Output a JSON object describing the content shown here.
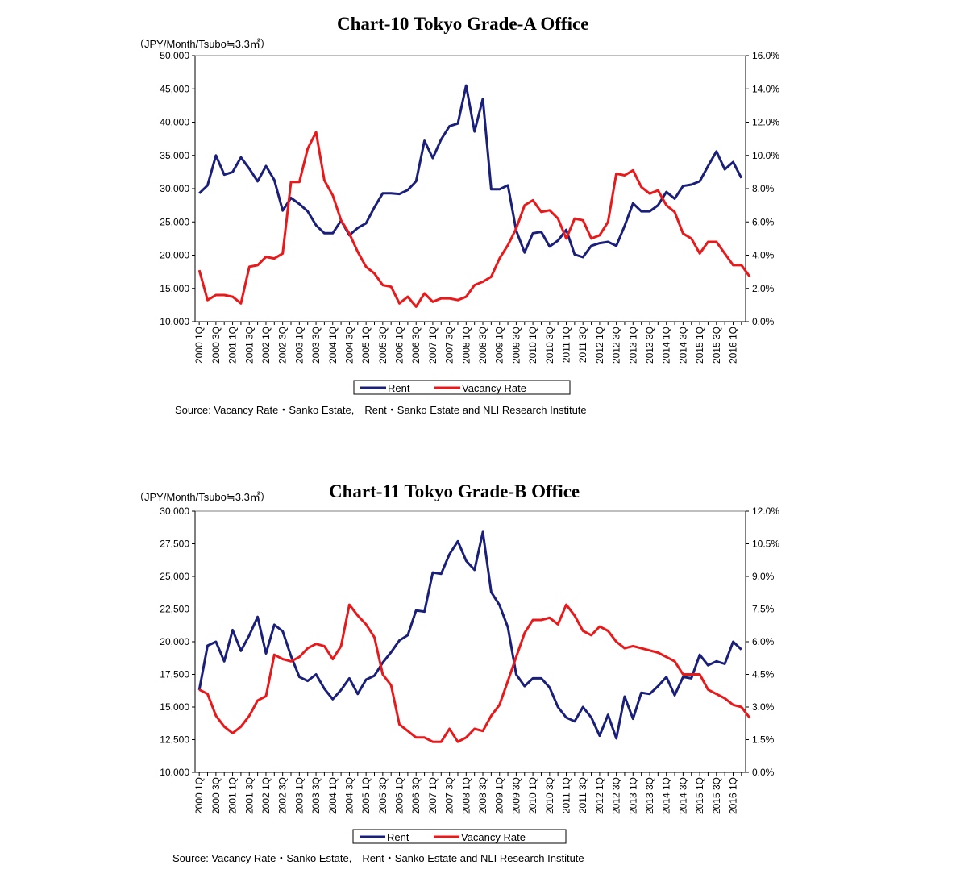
{
  "charts": [
    {
      "id": "a",
      "title": "Chart-10 Tokyo Grade-A Office",
      "unit": "（JPY/Month/Tsubo≒3.3㎡）",
      "source": "Source: Vacancy Rate・Sanko Estate,　Rent・Sanko Estate and NLI Research Institute",
      "legend": [
        "Rent",
        "Vacancy Rate"
      ]
    },
    {
      "id": "b",
      "title": "Chart-11 Tokyo Grade-B Office",
      "unit": "（JPY/Month/Tsubo≒3.3㎡）",
      "source": "Source: Vacancy Rate・Sanko Estate,　Rent・Sanko Estate and NLI Research Institute",
      "legend": [
        "Rent",
        "Vacancy Rate"
      ]
    }
  ],
  "colors": {
    "rent": "#1a1f7a",
    "vacancy": "#e8191b",
    "axis": "#000000",
    "frame": "#7f7f7f"
  },
  "chart_data": [
    {
      "type": "line",
      "title": "Chart-10 Tokyo Grade-A Office",
      "ylabel": "（JPY/Month/Tsubo≒3.3㎡）",
      "x_tick_labels": [
        "2000 1Q",
        "2000 3Q",
        "2001 1Q",
        "2001 3Q",
        "2002 1Q",
        "2002 3Q",
        "2003 1Q",
        "2003 3Q",
        "2004 1Q",
        "2004 3Q",
        "2005 1Q",
        "2005 3Q",
        "2006 1Q",
        "2006 3Q",
        "2007 1Q",
        "2007 3Q",
        "2008 1Q",
        "2008 3Q",
        "2009 1Q",
        "2009 3Q",
        "2010 1Q",
        "2010 3Q",
        "2011 1Q",
        "2011 3Q",
        "2012 1Q",
        "2012 3Q",
        "2013 1Q",
        "2013 3Q",
        "2014 1Q",
        "2014 3Q",
        "2015 1Q",
        "2015 3Q",
        "2016 1Q"
      ],
      "y_left": {
        "range": [
          10000,
          50000
        ],
        "ticks": [
          "10,000",
          "15,000",
          "20,000",
          "25,000",
          "30,000",
          "35,000",
          "40,000",
          "45,000",
          "50,000"
        ]
      },
      "y_right": {
        "range": [
          0,
          16
        ],
        "ticks": [
          "0.0%",
          "2.0%",
          "4.0%",
          "6.0%",
          "8.0%",
          "10.0%",
          "12.0%",
          "14.0%",
          "16.0%"
        ]
      },
      "legend_position": "bottom",
      "grid": false,
      "series": [
        {
          "name": "Rent",
          "axis": "left",
          "values": [
            29300,
            30500,
            35000,
            32100,
            32500,
            34700,
            33000,
            31100,
            33400,
            31300,
            26700,
            28600,
            27700,
            26600,
            24500,
            23300,
            23300,
            25200,
            23000,
            24100,
            24800,
            27200,
            29300,
            29300,
            29200,
            29800,
            31100,
            37200,
            34600,
            37400,
            39400,
            39800,
            45500,
            38600,
            43500,
            29900,
            29900,
            30500,
            23700,
            20400,
            23300,
            23500,
            21300,
            22200,
            23800,
            20100,
            19700,
            21400,
            21800,
            22000,
            21400,
            24400,
            27800,
            26600,
            26600,
            27500,
            29500,
            28500,
            30400,
            30600,
            31100,
            33400,
            35600,
            32900,
            34000,
            31600
          ]
        },
        {
          "name": "Vacancy Rate",
          "axis": "right",
          "values": [
            3.1,
            1.3,
            1.6,
            1.6,
            1.5,
            1.1,
            3.3,
            3.4,
            3.9,
            3.8,
            4.1,
            8.4,
            8.4,
            10.4,
            11.4,
            8.5,
            7.6,
            6.1,
            5.3,
            4.2,
            3.3,
            2.9,
            2.2,
            2.1,
            1.1,
            1.5,
            0.9,
            1.7,
            1.2,
            1.4,
            1.4,
            1.3,
            1.5,
            2.2,
            2.4,
            2.7,
            3.8,
            4.6,
            5.6,
            7.0,
            7.3,
            6.6,
            6.7,
            6.2,
            5.0,
            6.2,
            6.1,
            5.0,
            5.2,
            6.0,
            8.9,
            8.8,
            9.1,
            8.1,
            7.7,
            7.9,
            7.0,
            6.6,
            5.3,
            5.0,
            4.1,
            4.8,
            4.8,
            4.1,
            3.4,
            3.4,
            2.7
          ]
        }
      ]
    },
    {
      "type": "line",
      "title": "Chart-11 Tokyo Grade-B Office",
      "ylabel": "（JPY/Month/Tsubo≒3.3㎡）",
      "x_tick_labels": [
        "2000 1Q",
        "2000 3Q",
        "2001 1Q",
        "2001 3Q",
        "2002 1Q",
        "2002 3Q",
        "2003 1Q",
        "2003 3Q",
        "2004 1Q",
        "2004 3Q",
        "2005 1Q",
        "2005 3Q",
        "2006 1Q",
        "2006 3Q",
        "2007 1Q",
        "2007 3Q",
        "2008 1Q",
        "2008 3Q",
        "2009 1Q",
        "2009 3Q",
        "2010 1Q",
        "2010 3Q",
        "2011 1Q",
        "2011 3Q",
        "2012 1Q",
        "2012 3Q",
        "2013 1Q",
        "2013 3Q",
        "2014 1Q",
        "2014 3Q",
        "2015 1Q",
        "2015 3Q",
        "2016 1Q"
      ],
      "y_left": {
        "range": [
          10000,
          30000
        ],
        "ticks": [
          "10,000",
          "12,500",
          "15,000",
          "17,500",
          "20,000",
          "22,500",
          "25,000",
          "27,500",
          "30,000"
        ]
      },
      "y_right": {
        "range": [
          0,
          12
        ],
        "ticks": [
          "0.0%",
          "1.5%",
          "3.0%",
          "4.5%",
          "6.0%",
          "7.5%",
          "9.0%",
          "10.5%",
          "12.0%"
        ]
      },
      "legend_position": "bottom",
      "grid": false,
      "series": [
        {
          "name": "Rent",
          "axis": "left",
          "values": [
            16300,
            19700,
            20000,
            18500,
            20900,
            19300,
            20500,
            21900,
            19100,
            21300,
            20800,
            18900,
            17300,
            17000,
            17500,
            16400,
            15600,
            16300,
            17200,
            16000,
            17100,
            17400,
            18400,
            19200,
            20100,
            20500,
            22400,
            22300,
            25300,
            25200,
            26700,
            27700,
            26200,
            25500,
            28400,
            23800,
            22800,
            21100,
            17500,
            16600,
            17200,
            17200,
            16500,
            15000,
            14200,
            13900,
            15000,
            14200,
            12800,
            14400,
            12600,
            15800,
            14100,
            16100,
            16000,
            16600,
            17300,
            15900,
            17300,
            17200,
            19000,
            18200,
            18500,
            18300,
            20000,
            19400
          ]
        },
        {
          "name": "Vacancy Rate",
          "axis": "right",
          "values": [
            3.8,
            3.6,
            2.6,
            2.1,
            1.8,
            2.1,
            2.6,
            3.3,
            3.5,
            5.4,
            5.2,
            5.1,
            5.3,
            5.7,
            5.9,
            5.8,
            5.2,
            5.8,
            7.7,
            7.2,
            6.8,
            6.2,
            4.5,
            4.0,
            2.2,
            1.9,
            1.6,
            1.6,
            1.4,
            1.4,
            2.0,
            1.4,
            1.6,
            2.0,
            1.9,
            2.6,
            3.1,
            4.2,
            5.3,
            6.4,
            7.0,
            7.0,
            7.1,
            6.8,
            7.7,
            7.2,
            6.5,
            6.3,
            6.7,
            6.5,
            6.0,
            5.7,
            5.8,
            5.7,
            5.6,
            5.5,
            5.3,
            5.1,
            4.5,
            4.5,
            4.5,
            3.8,
            3.6,
            3.4,
            3.1,
            3.0,
            2.5
          ]
        }
      ]
    }
  ]
}
